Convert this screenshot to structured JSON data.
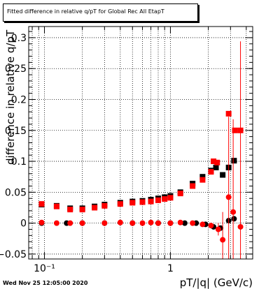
{
  "footer": {
    "timestamp": "Wed Nov 25 12:05:00 2020"
  },
  "chart_data": {
    "type": "scatter",
    "title": "Fitted difference in relative q/pT for Global Rec All EtapT",
    "xlabel": "pT/|q| (GeV/c)",
    "ylabel": "difference in relative q/pT",
    "x_scale": "log",
    "xlim": [
      0.075,
      4.5
    ],
    "ylim": [
      -0.058,
      0.318
    ],
    "x_ticks": [
      {
        "v": 0.1,
        "label": "10⁻¹"
      },
      {
        "v": 1,
        "label": "1"
      }
    ],
    "y_ticks": [
      {
        "v": -0.05,
        "label": "−0.05"
      },
      {
        "v": 0,
        "label": "0"
      },
      {
        "v": 0.05,
        "label": "0.05"
      },
      {
        "v": 0.1,
        "label": "0.1"
      },
      {
        "v": 0.15,
        "label": "0.15"
      },
      {
        "v": 0.2,
        "label": "0.2"
      },
      {
        "v": 0.25,
        "label": "0.25"
      },
      {
        "v": 0.3,
        "label": "0.3"
      }
    ],
    "grid": true,
    "series": [
      {
        "color": "#000000",
        "marker": "square",
        "points": [
          [
            0.095,
            0.03
          ],
          [
            0.125,
            0.028
          ],
          [
            0.16,
            0.024
          ],
          [
            0.2,
            0.024
          ],
          [
            0.25,
            0.027
          ],
          [
            0.3,
            0.03
          ],
          [
            0.4,
            0.033
          ],
          [
            0.5,
            0.035
          ],
          [
            0.6,
            0.036
          ],
          [
            0.7,
            0.038
          ],
          [
            0.8,
            0.04
          ],
          [
            0.9,
            0.042
          ],
          [
            1.0,
            0.044
          ],
          [
            1.2,
            0.05
          ],
          [
            1.5,
            0.064
          ],
          [
            1.8,
            0.075
          ],
          [
            2.1,
            0.085
          ],
          [
            2.3,
            0.09
          ],
          [
            2.6,
            0.078
          ],
          [
            2.9,
            0.09
          ],
          [
            3.2,
            0.101
          ]
        ]
      },
      {
        "color": "#ff0000",
        "marker": "square",
        "points": [
          [
            0.095,
            0.031
          ],
          [
            0.125,
            0.027
          ],
          [
            0.16,
            0.022
          ],
          [
            0.2,
            0.022
          ],
          [
            0.25,
            0.025
          ],
          [
            0.3,
            0.028
          ],
          [
            0.4,
            0.031
          ],
          [
            0.5,
            0.033
          ],
          [
            0.6,
            0.034
          ],
          [
            0.7,
            0.035
          ],
          [
            0.8,
            0.037
          ],
          [
            0.9,
            0.039
          ],
          [
            1.0,
            0.041
          ],
          [
            1.2,
            0.048
          ],
          [
            1.5,
            0.06
          ],
          [
            1.8,
            0.07
          ],
          [
            2.1,
            0.083
          ],
          [
            2.2,
            0.1
          ],
          [
            2.35,
            0.098
          ],
          [
            2.9,
            0.177
          ],
          [
            3.25,
            0.15
          ],
          [
            3.6,
            0.15
          ]
        ]
      },
      {
        "color": "#000000",
        "marker": "circle",
        "points": [
          [
            0.095,
            0.0
          ],
          [
            0.15,
            0.0
          ],
          [
            0.2,
            0.0
          ],
          [
            0.3,
            0.0
          ],
          [
            0.5,
            0.0
          ],
          [
            0.8,
            0.0
          ],
          [
            1.0,
            0.0
          ],
          [
            1.3,
            0.0
          ],
          [
            1.6,
            0.0
          ],
          [
            1.9,
            -0.002
          ],
          [
            2.2,
            -0.006
          ],
          [
            2.5,
            -0.008
          ],
          [
            2.9,
            0.004
          ],
          [
            3.2,
            0.007
          ]
        ]
      },
      {
        "color": "#ff0000",
        "marker": "circle",
        "points": [
          [
            0.095,
            0.001
          ],
          [
            0.125,
            0.0
          ],
          [
            0.16,
            0.0
          ],
          [
            0.2,
            0.0
          ],
          [
            0.3,
            0.0
          ],
          [
            0.4,
            0.001
          ],
          [
            0.5,
            0.0
          ],
          [
            0.6,
            0.0
          ],
          [
            0.7,
            0.001
          ],
          [
            0.8,
            0.0
          ],
          [
            1.0,
            0.0
          ],
          [
            1.2,
            0.001
          ],
          [
            1.5,
            0.0
          ],
          [
            1.8,
            -0.002
          ],
          [
            2.1,
            -0.004
          ],
          [
            2.4,
            -0.01
          ],
          [
            2.6,
            -0.027
          ],
          [
            2.9,
            0.042
          ],
          [
            3.15,
            0.018
          ],
          [
            3.6,
            -0.006
          ]
        ],
        "errors": [
          0,
          0,
          0,
          0,
          0,
          0,
          0,
          0,
          0,
          0,
          0,
          0,
          0,
          0,
          0,
          0.01,
          0.045,
          0.13,
          0.15,
          0.3
        ]
      }
    ]
  }
}
